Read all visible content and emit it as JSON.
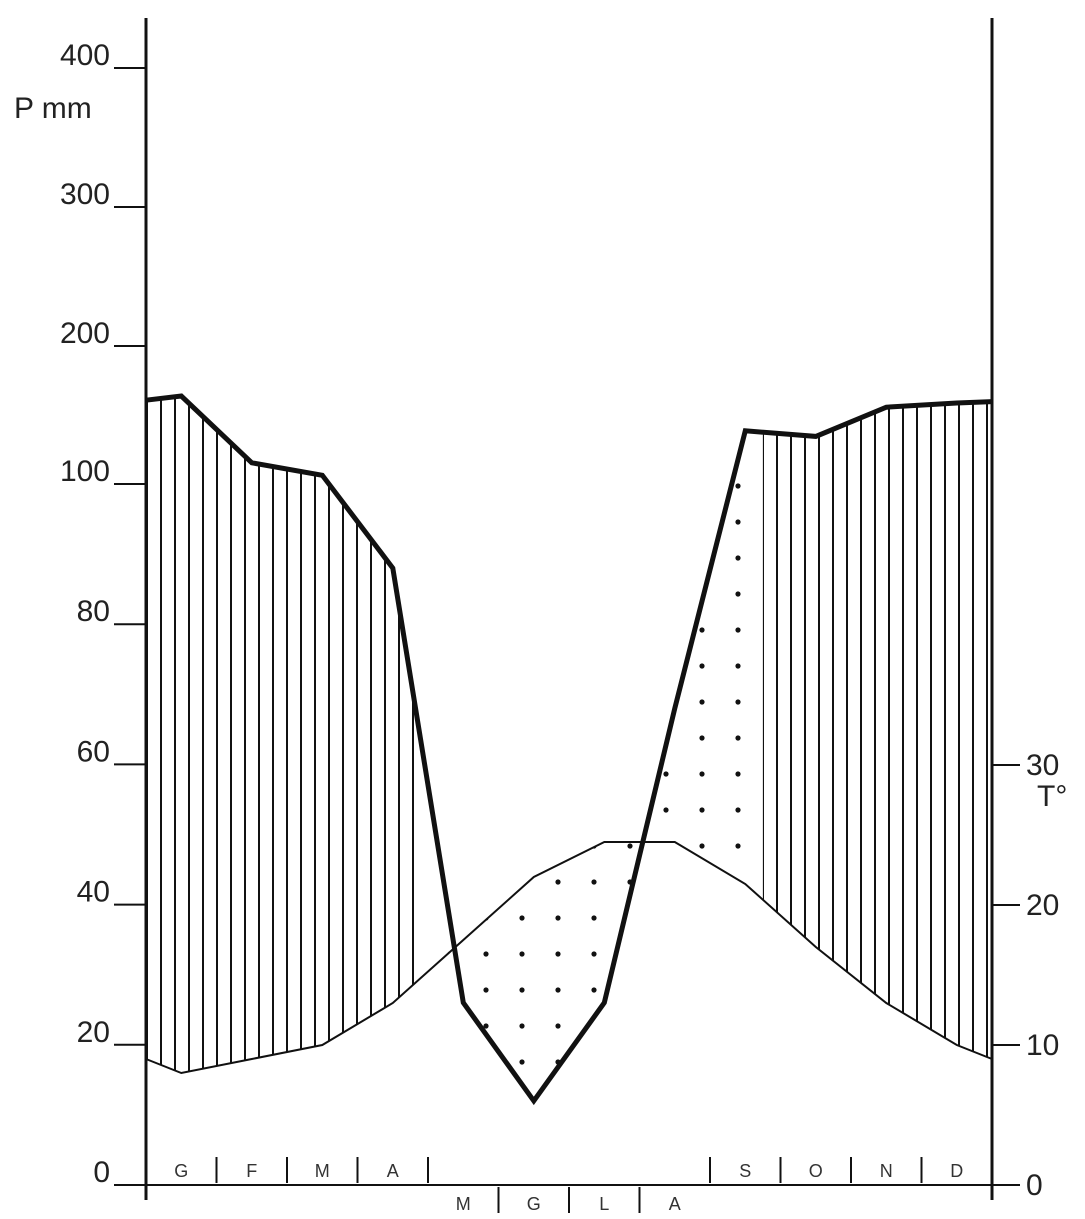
{
  "chart_data": {
    "type": "line",
    "title": "",
    "left_axis": {
      "label": "P mm",
      "ticks": [
        0,
        20,
        40,
        60,
        80,
        100,
        200,
        300,
        400
      ],
      "tick_labels": [
        "0",
        "20",
        "40",
        "60",
        "80",
        "100",
        "200",
        "300",
        "400"
      ],
      "scale": "piecewise: 2 mm per unit 0–100, 20 mm per unit 100–400"
    },
    "right_axis": {
      "label": "T°",
      "ticks": [
        0,
        10,
        20,
        30
      ],
      "tick_labels": [
        "0",
        "10",
        "20",
        "30"
      ]
    },
    "months_top_row": [
      "G",
      "F",
      "M",
      "A",
      "S",
      "O",
      "N",
      "D"
    ],
    "months_bottom_row": [
      "M",
      "G",
      "L",
      "A"
    ],
    "months": [
      "G",
      "F",
      "M",
      "A",
      "M",
      "G",
      "L",
      "A",
      "S",
      "O",
      "N",
      "D"
    ],
    "series": [
      {
        "name": "P mm",
        "style": "thick",
        "x": [
          0,
          0.5,
          1.5,
          2.5,
          3.5,
          4.5,
          5.5,
          6.5,
          7.5,
          8.5,
          9.5,
          10.5,
          11.5,
          12
        ],
        "values": [
          161,
          164,
          116,
          107,
          88,
          26,
          12,
          26,
          68,
          139,
          135,
          156,
          159,
          160
        ]
      },
      {
        "name": "T°",
        "style": "thin",
        "x": [
          0,
          0.5,
          1.5,
          2.5,
          3.5,
          4.5,
          5.5,
          6.5,
          7.5,
          8.5,
          9.5,
          10.5,
          11.5,
          12
        ],
        "values": [
          9.0,
          8.0,
          9.0,
          10.0,
          13.0,
          17.5,
          22.0,
          24.5,
          24.5,
          21.5,
          17.0,
          13.0,
          10.0,
          9.0
        ]
      }
    ],
    "fills": [
      {
        "pattern": "vertical-lines",
        "where": "P above 2T"
      },
      {
        "pattern": "dots",
        "where": "2T above P"
      }
    ],
    "grid": false,
    "legend": "none"
  }
}
